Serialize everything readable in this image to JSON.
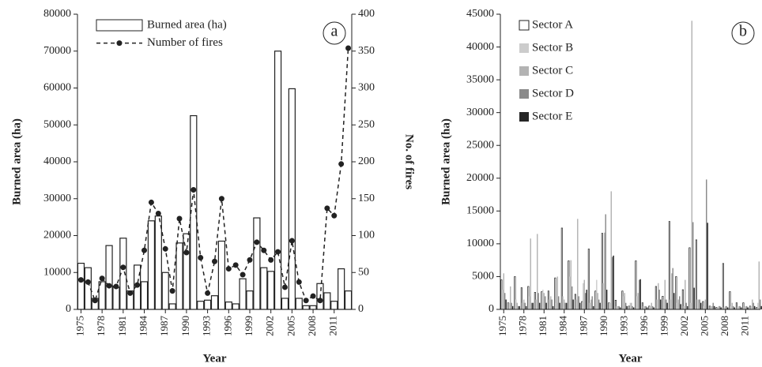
{
  "chart_data": [
    {
      "type": "bar",
      "panel_label": "a",
      "xlabel": "Year",
      "ylabel": "Burned area (ha)",
      "y2label": "No. of fires",
      "x": [
        1975,
        1976,
        1977,
        1978,
        1979,
        1980,
        1981,
        1982,
        1983,
        1984,
        1985,
        1986,
        1987,
        1988,
        1989,
        1990,
        1991,
        1992,
        1993,
        1994,
        1995,
        1996,
        1997,
        1998,
        1999,
        2000,
        2001,
        2002,
        2003,
        2004,
        2005,
        2006,
        2007,
        2008,
        2009,
        2010,
        2011,
        2012,
        2013
      ],
      "xlim": [
        1974.5,
        2013.5
      ],
      "xticks": [
        1975,
        1978,
        1981,
        1984,
        1987,
        1990,
        1993,
        1996,
        1999,
        2002,
        2005,
        2008,
        2011
      ],
      "ylim": [
        0,
        80000
      ],
      "yticks": [
        0,
        10000,
        20000,
        30000,
        40000,
        50000,
        60000,
        70000,
        80000
      ],
      "y2lim": [
        0,
        400
      ],
      "y2ticks": [
        0,
        50,
        100,
        150,
        200,
        250,
        300,
        350,
        400
      ],
      "series": [
        {
          "name": "Burned area (ha)",
          "color": "#ffffff",
          "values": [
            12500,
            11300,
            3000,
            7500,
            17300,
            6000,
            19300,
            5000,
            12000,
            7500,
            24000,
            25300,
            10000,
            1500,
            18000,
            20500,
            52500,
            2200,
            2500,
            3700,
            18500,
            2000,
            1500,
            8300,
            5000,
            24800,
            11300,
            10300,
            70000,
            3000,
            59800,
            3000,
            1000,
            1000,
            7000,
            4500,
            2200,
            11000,
            5000
          ]
        },
        {
          "name": "Number of fires",
          "color": "#222222",
          "type": "line",
          "axis": "y2",
          "values": [
            40,
            37,
            12,
            42,
            32,
            31,
            57,
            22,
            33,
            80,
            145,
            130,
            82,
            25,
            123,
            77,
            162,
            70,
            22,
            65,
            150,
            55,
            60,
            47,
            67,
            91,
            80,
            67,
            78,
            30,
            93,
            37,
            12,
            18,
            12,
            137,
            127,
            197,
            354
          ]
        }
      ]
    },
    {
      "type": "bar",
      "panel_label": "b",
      "xlabel": "Year",
      "ylabel": "Burned area (ha)",
      "x": [
        1975,
        1976,
        1977,
        1978,
        1979,
        1980,
        1981,
        1982,
        1983,
        1984,
        1985,
        1986,
        1987,
        1988,
        1989,
        1990,
        1991,
        1992,
        1993,
        1994,
        1995,
        1996,
        1997,
        1998,
        1999,
        2000,
        2001,
        2002,
        2003,
        2004,
        2005,
        2006,
        2007,
        2008,
        2009,
        2010,
        2011,
        2012,
        2013
      ],
      "xlim": [
        1974.5,
        2013.2
      ],
      "xticks": [
        1975,
        1978,
        1981,
        1984,
        1987,
        1990,
        1993,
        1996,
        1999,
        2002,
        2005,
        2008,
        2011
      ],
      "ylim": [
        0,
        45000
      ],
      "yticks": [
        0,
        5000,
        10000,
        15000,
        20000,
        25000,
        30000,
        35000,
        40000,
        45000
      ],
      "series": [
        {
          "name": "Sector A",
          "color": "#ffffff",
          "values": [
            4500,
            1000,
            5000,
            3300,
            3500,
            2600,
            2700,
            2800,
            4800,
            12400,
            7400,
            2300,
            1200,
            9200,
            2800,
            11600,
            1000,
            1400,
            2800,
            500,
            7400,
            1000,
            500,
            3500,
            2000,
            13400,
            5000,
            3000,
            9400,
            10600,
            1200,
            500,
            300,
            7000,
            2700,
            1000,
            1000,
            500,
            300
          ]
        },
        {
          "name": "Sector B",
          "color": "#cccccc",
          "values": [
            3000,
            1000,
            1500,
            1000,
            2000,
            1500,
            3000,
            1500,
            1000,
            2000,
            5000,
            1500,
            4000,
            1000,
            4500,
            4000,
            1000,
            500,
            2000,
            1000,
            2000,
            500,
            500,
            1500,
            1500,
            1500,
            1000,
            500,
            1000,
            1500,
            500,
            500,
            300,
            300,
            500,
            300,
            300,
            500,
            1000
          ]
        },
        {
          "name": "Sector C",
          "color": "#b3b3b3",
          "values": [
            5500,
            3500,
            1000,
            1500,
            10800,
            11500,
            2500,
            2000,
            5000,
            1500,
            7500,
            13800,
            4500,
            1500,
            2500,
            11700,
            18000,
            500,
            2500,
            1000,
            2500,
            500,
            1000,
            4000,
            4500,
            5500,
            1500,
            4500,
            44000,
            1500,
            1500,
            500,
            500,
            500,
            1000,
            500,
            500,
            1500,
            7300
          ]
        },
        {
          "name": "Sector D",
          "color": "#8a8a8a",
          "values": [
            2500,
            1000,
            500,
            1000,
            1000,
            2500,
            2000,
            1500,
            2000,
            1000,
            3500,
            2000,
            2500,
            2000,
            1500,
            14500,
            8000,
            500,
            1000,
            500,
            4500,
            500,
            500,
            3000,
            1500,
            6300,
            2000,
            1000,
            13300,
            1500,
            19800,
            1000,
            500,
            500,
            500,
            500,
            500,
            1000,
            1500
          ]
        },
        {
          "name": "Sector E",
          "color": "#262626",
          "values": [
            1500,
            500,
            500,
            500,
            1000,
            1000,
            1000,
            500,
            1000,
            1000,
            1500,
            1000,
            3000,
            500,
            1000,
            3000,
            8200,
            300,
            500,
            300,
            4600,
            300,
            300,
            1500,
            1000,
            2500,
            800,
            500,
            3300,
            1000,
            13200,
            500,
            300,
            300,
            300,
            300,
            300,
            500,
            500
          ]
        }
      ]
    }
  ]
}
